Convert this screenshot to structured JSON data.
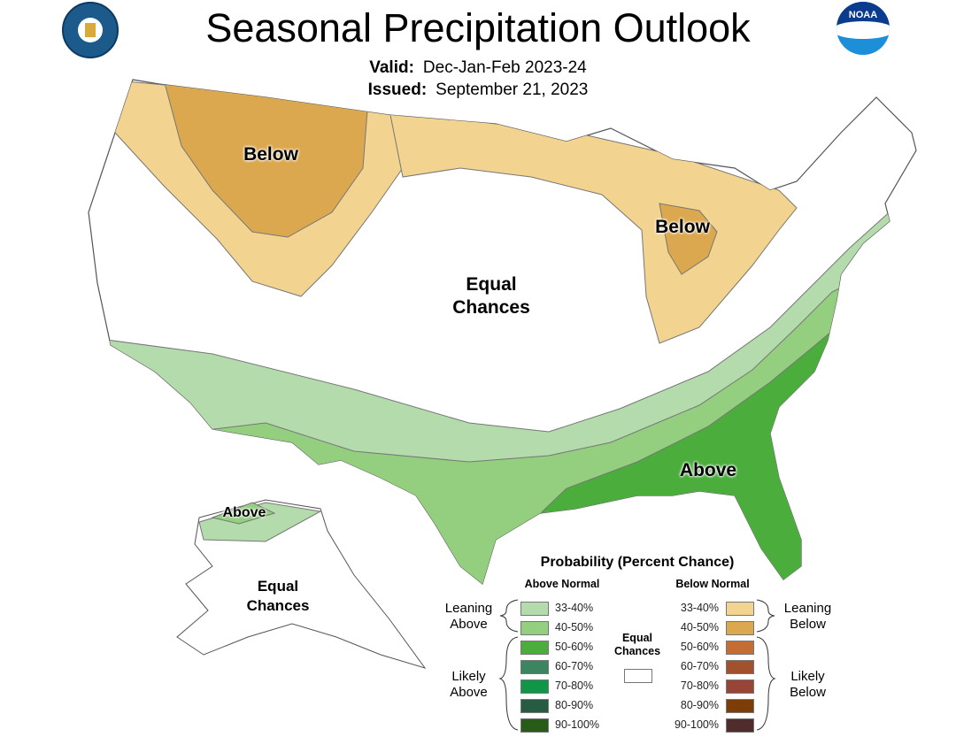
{
  "title": "Seasonal Precipitation Outlook",
  "valid": {
    "label": "Valid:",
    "value": "Dec-Jan-Feb 2023-24"
  },
  "issued": {
    "label": "Issued:",
    "value": "September 21, 2023"
  },
  "logos": {
    "left": "department-of-commerce-seal",
    "right": "noaa-logo",
    "noaa_text": "NOAA"
  },
  "map_labels": {
    "west_below": "Below",
    "lakes_below": "Below",
    "center_equal": [
      "Equal",
      "Chances"
    ],
    "southeast_above": "Above",
    "alaska_above": "Above",
    "alaska_equal": [
      "Equal",
      "Chances"
    ]
  },
  "legend": {
    "title": "Probability (Percent Chance)",
    "above_header": "Above Normal",
    "below_header": "Below Normal",
    "leaning_above": [
      "Leaning",
      "Above"
    ],
    "likely_above": [
      "Likely",
      "Above"
    ],
    "leaning_below": [
      "Leaning",
      "Below"
    ],
    "likely_below": [
      "Likely",
      "Below"
    ],
    "equal_chances": [
      "Equal",
      "Chances"
    ],
    "equal_color": "#ffffff",
    "above": [
      {
        "range": "33-40%",
        "color": "#b3dbac"
      },
      {
        "range": "40-50%",
        "color": "#94ce7f"
      },
      {
        "range": "50-60%",
        "color": "#4aad3c"
      },
      {
        "range": "60-70%",
        "color": "#3b8560"
      },
      {
        "range": "70-80%",
        "color": "#0f9747"
      },
      {
        "range": "80-90%",
        "color": "#285c42"
      },
      {
        "range": "90-100%",
        "color": "#285a18"
      }
    ],
    "below": [
      {
        "range": "33-40%",
        "color": "#f2d38f"
      },
      {
        "range": "40-50%",
        "color": "#dca84f"
      },
      {
        "range": "50-60%",
        "color": "#c46d34"
      },
      {
        "range": "60-70%",
        "color": "#a3502f"
      },
      {
        "range": "70-80%",
        "color": "#994535"
      },
      {
        "range": "80-90%",
        "color": "#7d3d07"
      },
      {
        "range": "90-100%",
        "color": "#4f2d2d"
      }
    ]
  }
}
